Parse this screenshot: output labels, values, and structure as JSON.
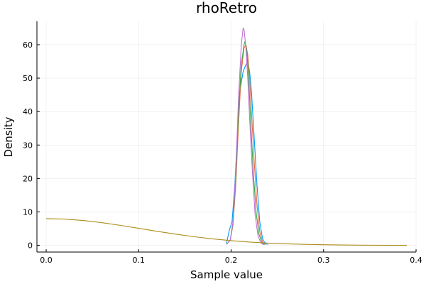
{
  "chart_data": {
    "type": "line",
    "title": "rhoRetro",
    "xlabel": "Sample value",
    "ylabel": "Density",
    "xlim": [
      -0.01,
      0.4
    ],
    "ylim": [
      -2,
      67
    ],
    "xticks": [
      0.0,
      0.1,
      0.2,
      0.3,
      0.4
    ],
    "xtick_labels": [
      "0.0",
      "0.1",
      "0.2",
      "0.3",
      "0.4"
    ],
    "yticks": [
      0,
      10,
      20,
      30,
      40,
      50,
      60
    ],
    "ytick_labels": [
      "0",
      "10",
      "20",
      "30",
      "40",
      "50",
      "60"
    ],
    "grid": true,
    "legend": "none",
    "series": [
      {
        "color": "#009af9",
        "x": [
          0.195,
          0.198,
          0.201,
          0.204,
          0.207,
          0.21,
          0.213,
          0.216,
          0.218,
          0.22,
          0.222,
          0.225,
          0.228,
          0.231,
          0.234,
          0.237,
          0.24
        ],
        "y": [
          0.5,
          4.5,
          7.0,
          18.0,
          34.0,
          47.0,
          52.0,
          54.0,
          55.0,
          52.0,
          46.0,
          32.0,
          18.0,
          7.0,
          2.0,
          0.5,
          0.3
        ]
      },
      {
        "color": "#e26f46",
        "x": [
          0.195,
          0.199,
          0.202,
          0.205,
          0.208,
          0.211,
          0.214,
          0.216,
          0.218,
          0.22,
          0.222,
          0.225,
          0.228,
          0.231,
          0.234,
          0.237
        ],
        "y": [
          0.3,
          1.5,
          6.0,
          18.0,
          36.0,
          52.0,
          59.0,
          60.0,
          57.0,
          50.0,
          40.0,
          25.0,
          12.0,
          4.0,
          1.0,
          0.2
        ]
      },
      {
        "color": "#3da44d",
        "x": [
          0.195,
          0.199,
          0.202,
          0.205,
          0.208,
          0.211,
          0.214,
          0.215,
          0.217,
          0.219,
          0.221,
          0.224,
          0.227,
          0.23,
          0.233,
          0.236
        ],
        "y": [
          0.3,
          1.5,
          6.5,
          20.0,
          40.0,
          54.0,
          60.0,
          61.0,
          58.0,
          50.0,
          38.0,
          22.0,
          10.0,
          3.5,
          1.0,
          0.2
        ]
      },
      {
        "color": "#c271d2",
        "x": [
          0.195,
          0.199,
          0.202,
          0.205,
          0.208,
          0.211,
          0.213,
          0.214,
          0.216,
          0.218,
          0.22,
          0.223,
          0.226,
          0.229,
          0.232,
          0.235
        ],
        "y": [
          0.3,
          1.5,
          7.0,
          22.0,
          44.0,
          60.0,
          65.0,
          64.5,
          59.0,
          50.0,
          38.0,
          22.0,
          9.0,
          3.0,
          0.8,
          0.2
        ]
      },
      {
        "color": "#ac8d18",
        "x": [
          0.0,
          0.02,
          0.04,
          0.06,
          0.08,
          0.1,
          0.12,
          0.14,
          0.16,
          0.18,
          0.2,
          0.22,
          0.24,
          0.26,
          0.28,
          0.3,
          0.32,
          0.34,
          0.36,
          0.39
        ],
        "y": [
          8.0,
          7.86,
          7.44,
          6.79,
          5.99,
          5.1,
          4.2,
          3.35,
          2.59,
          1.94,
          1.41,
          0.99,
          0.68,
          0.45,
          0.29,
          0.18,
          0.11,
          0.06,
          0.03,
          0.01
        ]
      }
    ]
  }
}
